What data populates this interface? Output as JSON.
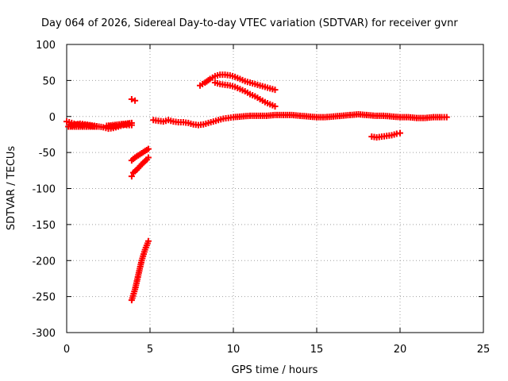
{
  "chart_data": {
    "type": "scatter",
    "title": "Day 064 of 2026, Sidereal Day-to-day VTEC variation (SDTVAR) for receiver gvnr",
    "xlabel": "GPS time / hours",
    "ylabel": "SDTVAR / TECUs",
    "xlim": [
      0,
      25
    ],
    "ylim": [
      -300,
      100
    ],
    "xticks": [
      0,
      5,
      10,
      15,
      20,
      25
    ],
    "yticks": [
      100,
      50,
      0,
      -50,
      -100,
      -150,
      -200,
      -250,
      -300
    ],
    "xtick_labels": [
      "0",
      "5",
      "10",
      "15",
      "20",
      "25"
    ],
    "ytick_labels": [
      "100",
      "50",
      "0",
      "-50",
      "-100",
      "-150",
      "-200",
      "-250",
      "-300"
    ],
    "grid": true,
    "marker": "plus",
    "series": [
      {
        "color": "#ff0000",
        "points": [
          [
            0.0,
            -7
          ],
          [
            0.3,
            -9
          ],
          [
            0.6,
            -11
          ],
          [
            0.9,
            -12
          ],
          [
            1.2,
            -12
          ],
          [
            1.5,
            -13
          ],
          [
            1.8,
            -14
          ],
          [
            0.1,
            -14
          ],
          [
            0.4,
            -12
          ],
          [
            0.8,
            -10
          ],
          [
            1.1,
            -11
          ],
          [
            1.4,
            -12
          ],
          [
            2.2,
            -15
          ],
          [
            2.5,
            -17
          ],
          [
            2.8,
            -16
          ],
          [
            3.1,
            -14
          ],
          [
            3.4,
            -12
          ],
          [
            3.7,
            -10
          ],
          [
            3.9,
            -9
          ],
          [
            2.4,
            -13
          ],
          [
            2.7,
            -14
          ],
          [
            3.0,
            -13
          ],
          [
            3.3,
            -11
          ],
          [
            3.6,
            -12
          ],
          [
            3.9,
            -12
          ]
        ]
      },
      {
        "color": "#ff0000",
        "points": [
          [
            3.9,
            24
          ],
          [
            4.1,
            22
          ]
        ]
      },
      {
        "color": "#ff0000",
        "points": [
          [
            3.9,
            -61
          ],
          [
            4.1,
            -57
          ],
          [
            4.3,
            -54
          ],
          [
            4.5,
            -51
          ],
          [
            4.7,
            -48
          ],
          [
            4.9,
            -45
          ]
        ]
      },
      {
        "color": "#ff0000",
        "points": [
          [
            3.9,
            -83
          ],
          [
            4.0,
            -78
          ],
          [
            4.2,
            -74
          ],
          [
            4.4,
            -69
          ],
          [
            4.6,
            -64
          ],
          [
            4.8,
            -60
          ],
          [
            4.9,
            -57
          ]
        ]
      },
      {
        "color": "#ff0000",
        "points": [
          [
            3.9,
            -255
          ],
          [
            4.1,
            -240
          ],
          [
            4.3,
            -220
          ],
          [
            4.5,
            -200
          ],
          [
            4.7,
            -185
          ],
          [
            4.9,
            -173
          ]
        ]
      },
      {
        "color": "#ff0000",
        "points": [
          [
            5.2,
            -5
          ],
          [
            5.5,
            -6
          ],
          [
            5.8,
            -7
          ],
          [
            6.1,
            -5
          ],
          [
            6.4,
            -7
          ],
          [
            6.7,
            -8
          ],
          [
            7.0,
            -8
          ],
          [
            7.3,
            -9
          ],
          [
            7.6,
            -11
          ],
          [
            7.9,
            -12
          ],
          [
            8.2,
            -11
          ],
          [
            8.5,
            -9
          ],
          [
            8.8,
            -7
          ],
          [
            9.1,
            -5
          ],
          [
            9.4,
            -3
          ],
          [
            9.7,
            -2
          ],
          [
            10.0,
            -1
          ],
          [
            10.5,
            0
          ],
          [
            11.0,
            1
          ],
          [
            11.5,
            1
          ],
          [
            12.0,
            1
          ],
          [
            12.5,
            2
          ],
          [
            13.0,
            2
          ],
          [
            13.5,
            2
          ],
          [
            14.0,
            1
          ],
          [
            14.5,
            0
          ],
          [
            15.0,
            -1
          ],
          [
            15.5,
            -1
          ],
          [
            16.0,
            0
          ],
          [
            16.5,
            1
          ],
          [
            17.0,
            2
          ],
          [
            17.5,
            3
          ],
          [
            18.0,
            2
          ],
          [
            18.5,
            1
          ],
          [
            19.0,
            1
          ],
          [
            19.5,
            0
          ],
          [
            20.0,
            -1
          ],
          [
            20.5,
            -1
          ],
          [
            21.0,
            -2
          ],
          [
            21.5,
            -2
          ],
          [
            22.0,
            -1
          ],
          [
            22.5,
            -1
          ],
          [
            22.8,
            -1
          ]
        ]
      },
      {
        "color": "#ff0000",
        "points": [
          [
            8.0,
            43
          ],
          [
            8.3,
            47
          ],
          [
            8.6,
            52
          ],
          [
            8.9,
            56
          ],
          [
            9.2,
            58
          ],
          [
            9.5,
            58
          ],
          [
            9.8,
            57
          ],
          [
            10.1,
            55
          ],
          [
            10.4,
            52
          ],
          [
            10.7,
            49
          ],
          [
            11.0,
            47
          ],
          [
            11.3,
            45
          ],
          [
            11.6,
            43
          ],
          [
            11.9,
            41
          ],
          [
            12.2,
            39
          ],
          [
            12.5,
            37
          ]
        ]
      },
      {
        "color": "#ff0000",
        "points": [
          [
            8.9,
            47
          ],
          [
            9.2,
            45
          ],
          [
            9.5,
            44
          ],
          [
            9.8,
            43
          ],
          [
            10.1,
            41
          ],
          [
            10.4,
            38
          ],
          [
            10.7,
            35
          ],
          [
            11.0,
            31
          ],
          [
            11.3,
            28
          ],
          [
            11.6,
            24
          ],
          [
            11.9,
            20
          ],
          [
            12.2,
            17
          ],
          [
            12.5,
            14
          ]
        ]
      },
      {
        "color": "#ff0000",
        "points": [
          [
            18.3,
            -28
          ],
          [
            18.6,
            -29
          ],
          [
            18.9,
            -28
          ],
          [
            19.2,
            -27
          ],
          [
            19.5,
            -26
          ],
          [
            19.8,
            -24
          ],
          [
            20.0,
            -23
          ]
        ]
      }
    ]
  }
}
